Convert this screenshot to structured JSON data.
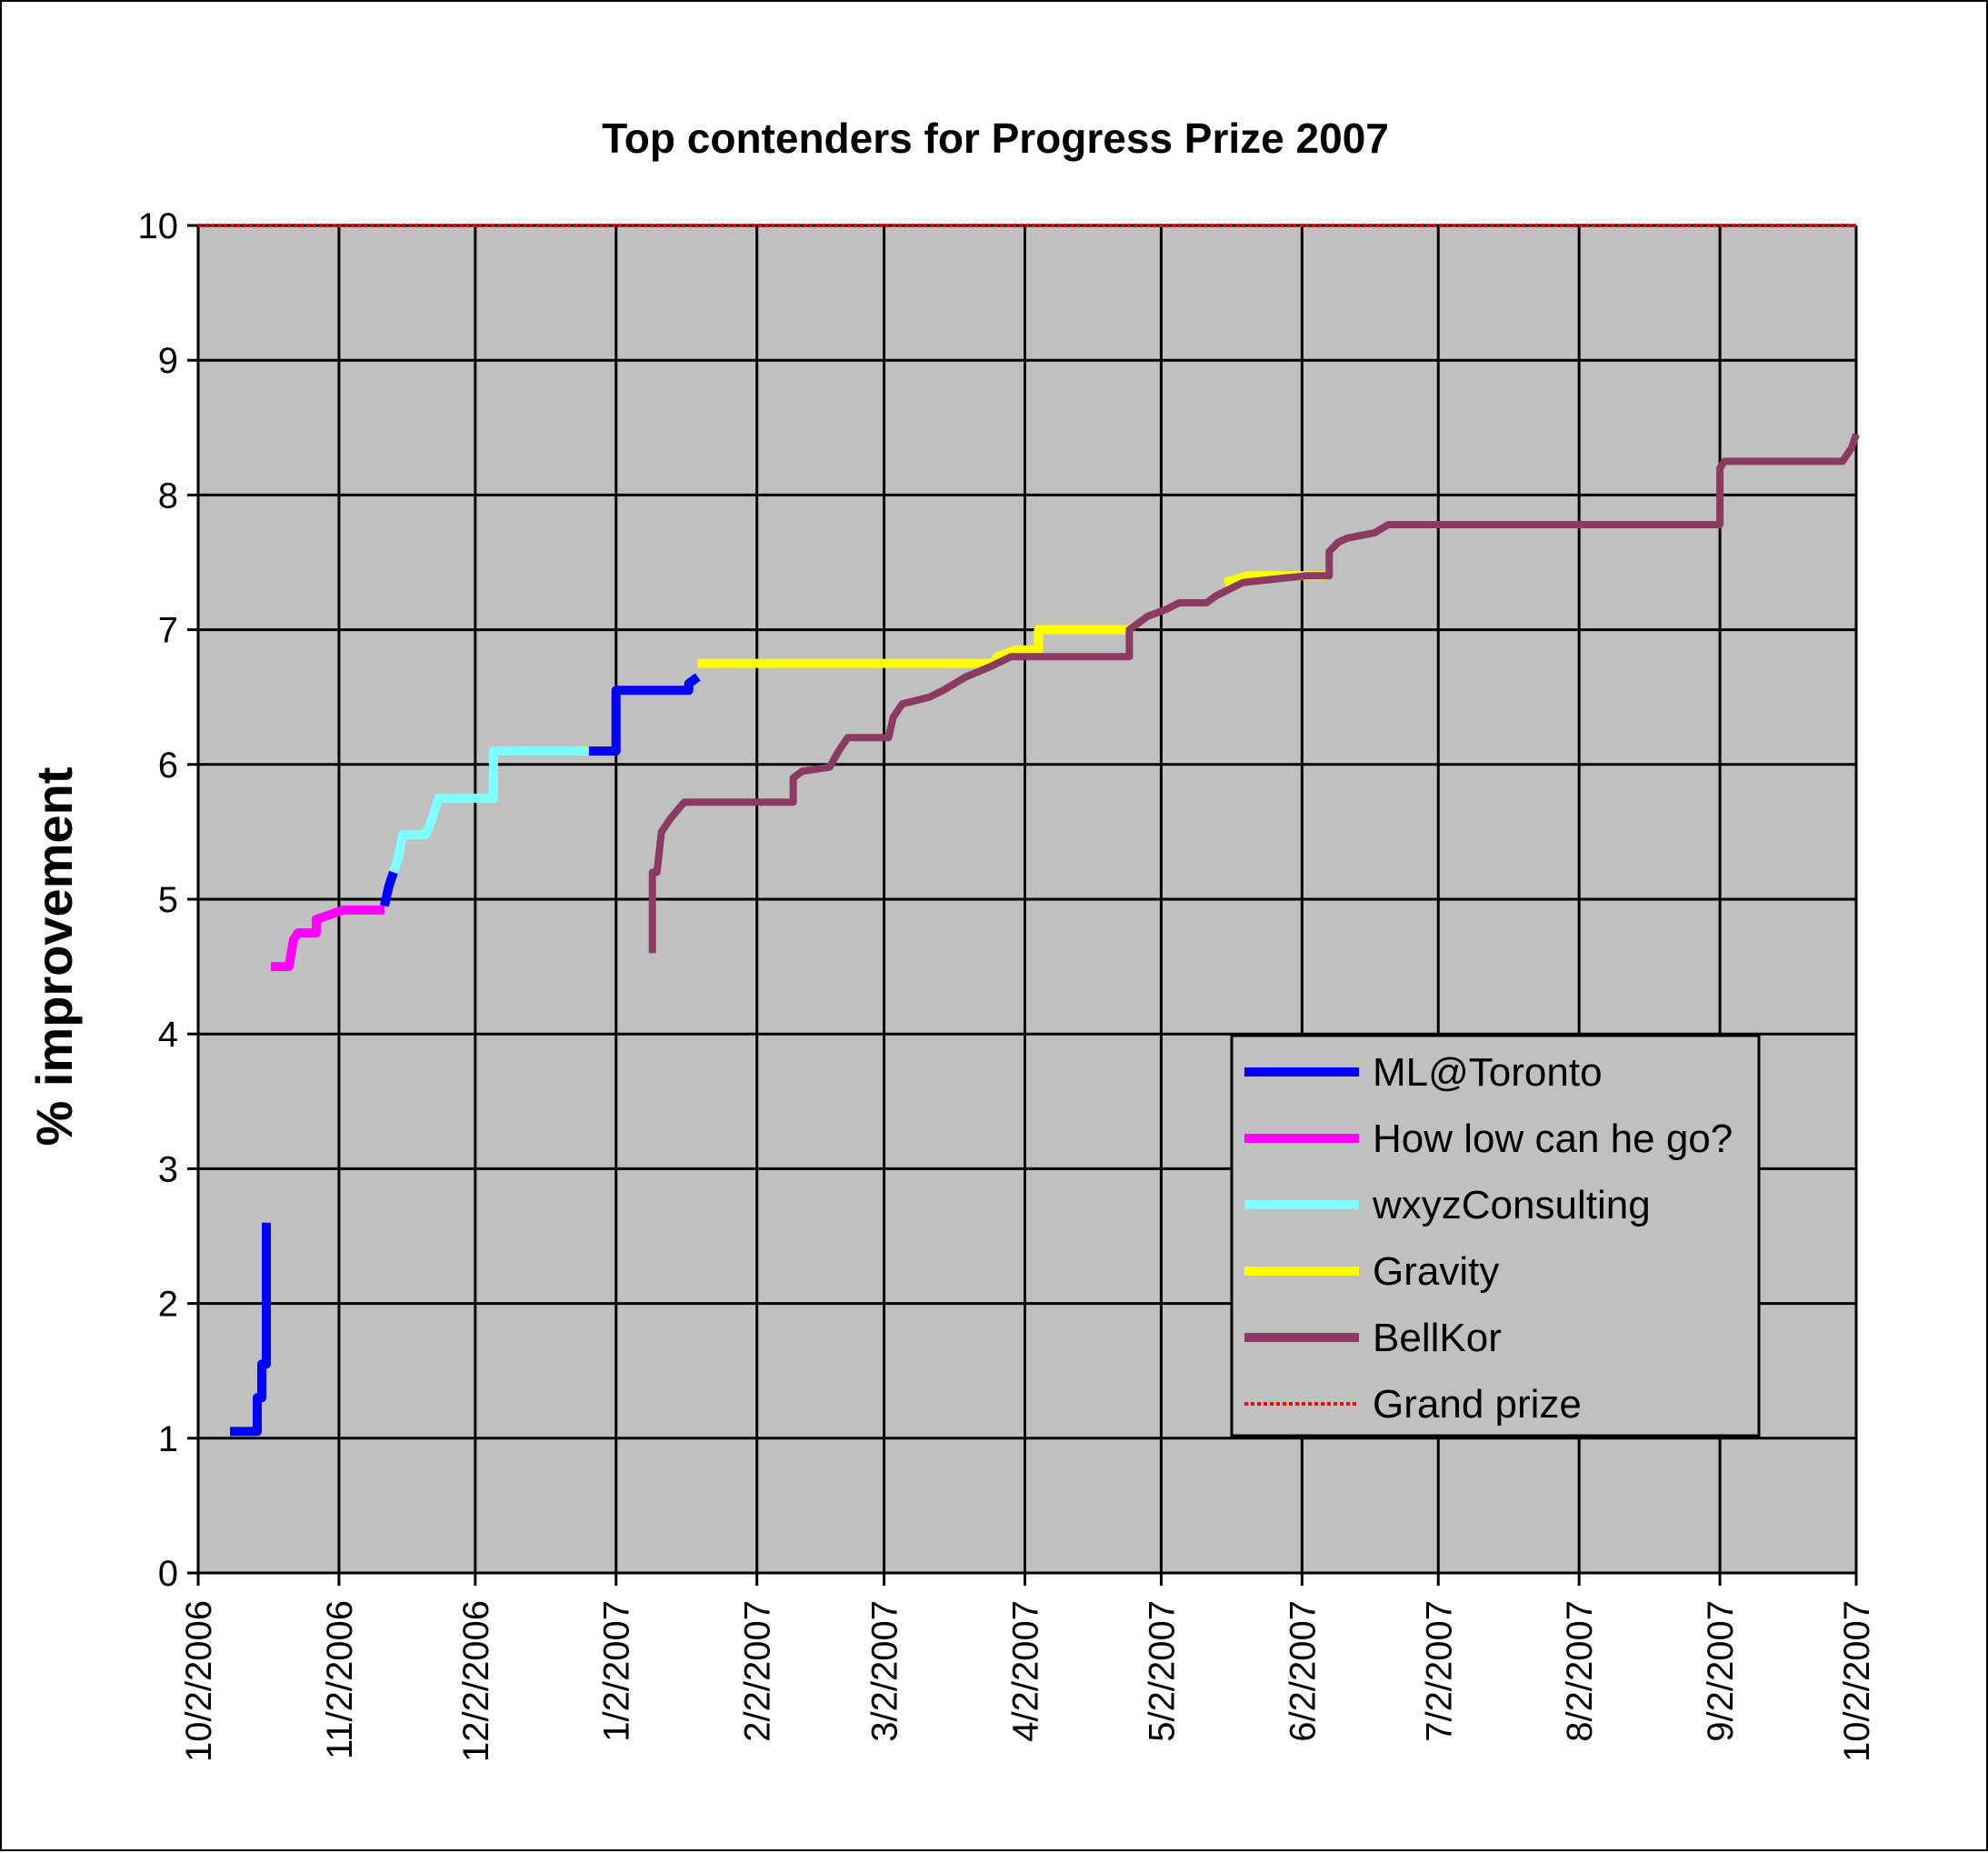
{
  "chart_data": {
    "type": "line",
    "title": "Top contenders for Progress Prize 2007",
    "xlabel": "",
    "ylabel": "% improvement",
    "xlim": [
      "2006-10-02",
      "2007-10-02"
    ],
    "ylim": [
      0,
      10
    ],
    "y_ticks": [
      "0",
      "1",
      "2",
      "3",
      "4",
      "5",
      "6",
      "7",
      "8",
      "9",
      "10"
    ],
    "x_ticks": [
      {
        "date": "2006-10-02",
        "label": "10/2/2006"
      },
      {
        "date": "2006-11-02",
        "label": "11/2/2006"
      },
      {
        "date": "2006-12-02",
        "label": "12/2/2006"
      },
      {
        "date": "2007-01-02",
        "label": "1/2/2007"
      },
      {
        "date": "2007-02-02",
        "label": "2/2/2007"
      },
      {
        "date": "2007-03-02",
        "label": "3/2/2007"
      },
      {
        "date": "2007-04-02",
        "label": "4/2/2007"
      },
      {
        "date": "2007-05-02",
        "label": "5/2/2007"
      },
      {
        "date": "2007-06-02",
        "label": "6/2/2007"
      },
      {
        "date": "2007-07-02",
        "label": "7/2/2007"
      },
      {
        "date": "2007-08-02",
        "label": "8/2/2007"
      },
      {
        "date": "2007-09-02",
        "label": "9/2/2007"
      },
      {
        "date": "2007-10-02",
        "label": "10/2/2007"
      }
    ],
    "grid": true,
    "plot_background": "#c0c0c0",
    "legend_position": "lower-right",
    "series": [
      {
        "name": "ML@Toronto",
        "color": "#0000ff",
        "points": [
          [
            "2006-10-09",
            1.05
          ],
          [
            "2006-10-15",
            1.05
          ],
          [
            "2006-10-15",
            1.3
          ],
          [
            "2006-10-16",
            1.3
          ],
          [
            "2006-10-16",
            1.55
          ],
          [
            "2006-10-17",
            1.55
          ],
          [
            "2006-10-17",
            2.6
          ],
          [
            "2006-11-03",
            null
          ],
          [
            "2006-11-12",
            4.95
          ],
          [
            "2006-11-13",
            5.1
          ],
          [
            "2006-11-14",
            5.2
          ],
          [
            "2006-12-27",
            null
          ],
          [
            "2006-12-27",
            6.1
          ],
          [
            "2007-01-02",
            6.1
          ],
          [
            "2007-01-02",
            6.55
          ],
          [
            "2007-01-18",
            6.55
          ],
          [
            "2007-01-18",
            6.6
          ],
          [
            "2007-01-20",
            6.65
          ]
        ]
      },
      {
        "name": "How low can he go?",
        "color": "#ff00ff",
        "points": [
          [
            "2006-10-18",
            4.5
          ],
          [
            "2006-10-22",
            4.5
          ],
          [
            "2006-10-23",
            4.7
          ],
          [
            "2006-10-24",
            4.75
          ],
          [
            "2006-10-28",
            4.75
          ],
          [
            "2006-10-28",
            4.85
          ],
          [
            "2006-11-03",
            4.92
          ],
          [
            "2006-11-12",
            4.92
          ]
        ]
      },
      {
        "name": "wxyzConsulting",
        "color": "#80ffff",
        "points": [
          [
            "2006-11-14",
            5.2
          ],
          [
            "2006-11-15",
            5.3
          ],
          [
            "2006-11-16",
            5.48
          ],
          [
            "2006-11-21",
            5.48
          ],
          [
            "2006-11-22",
            5.55
          ],
          [
            "2006-11-24",
            5.75
          ],
          [
            "2006-12-06",
            5.75
          ],
          [
            "2006-12-06",
            6.1
          ],
          [
            "2006-12-27",
            6.1
          ]
        ]
      },
      {
        "name": "Gravity",
        "color": "#ffff00",
        "points": [
          [
            "2007-01-20",
            6.75
          ],
          [
            "2007-03-26",
            6.75
          ],
          [
            "2007-03-27",
            6.8
          ],
          [
            "2007-03-31",
            6.85
          ],
          [
            "2007-04-05",
            6.85
          ],
          [
            "2007-04-05",
            7.0
          ],
          [
            "2007-04-25",
            7.0
          ],
          [
            "2007-05-16",
            null
          ],
          [
            "2007-05-16",
            7.35
          ],
          [
            "2007-05-21",
            7.4
          ],
          [
            "2007-06-08",
            7.4
          ]
        ]
      },
      {
        "name": "BellKor",
        "color": "#8b3a62",
        "points": [
          [
            "2007-01-10",
            4.6
          ],
          [
            "2007-01-10",
            5.2
          ],
          [
            "2007-01-11",
            5.2
          ],
          [
            "2007-01-12",
            5.5
          ],
          [
            "2007-01-14",
            5.6
          ],
          [
            "2007-01-17",
            5.72
          ],
          [
            "2007-02-10",
            5.72
          ],
          [
            "2007-02-10",
            5.9
          ],
          [
            "2007-02-12",
            5.95
          ],
          [
            "2007-02-18",
            5.98
          ],
          [
            "2007-02-20",
            6.1
          ],
          [
            "2007-02-22",
            6.2
          ],
          [
            "2007-03-03",
            6.2
          ],
          [
            "2007-03-04",
            6.35
          ],
          [
            "2007-03-06",
            6.45
          ],
          [
            "2007-03-12",
            6.5
          ],
          [
            "2007-03-15",
            6.55
          ],
          [
            "2007-03-20",
            6.65
          ],
          [
            "2007-03-25",
            6.72
          ],
          [
            "2007-03-30",
            6.8
          ],
          [
            "2007-04-25",
            6.8
          ],
          [
            "2007-04-25",
            7.0
          ],
          [
            "2007-04-29",
            7.1
          ],
          [
            "2007-05-03",
            7.15
          ],
          [
            "2007-05-06",
            7.2
          ],
          [
            "2007-05-12",
            7.2
          ],
          [
            "2007-05-14",
            7.25
          ],
          [
            "2007-05-20",
            7.35
          ],
          [
            "2007-05-28",
            7.38
          ],
          [
            "2007-06-03",
            7.4
          ],
          [
            "2007-06-08",
            7.4
          ],
          [
            "2007-06-08",
            7.58
          ],
          [
            "2007-06-10",
            7.65
          ],
          [
            "2007-06-12",
            7.68
          ],
          [
            "2007-06-18",
            7.72
          ],
          [
            "2007-06-21",
            7.78
          ],
          [
            "2007-09-02",
            7.78
          ],
          [
            "2007-09-02",
            8.2
          ],
          [
            "2007-09-03",
            8.25
          ],
          [
            "2007-09-29",
            8.25
          ],
          [
            "2007-10-01",
            8.35
          ],
          [
            "2007-10-02",
            8.45
          ]
        ]
      },
      {
        "name": "Grand prize",
        "color": "#ff0000",
        "dashed": true,
        "points": [
          [
            "2006-10-02",
            10
          ],
          [
            "2007-10-02",
            10
          ]
        ]
      }
    ]
  }
}
